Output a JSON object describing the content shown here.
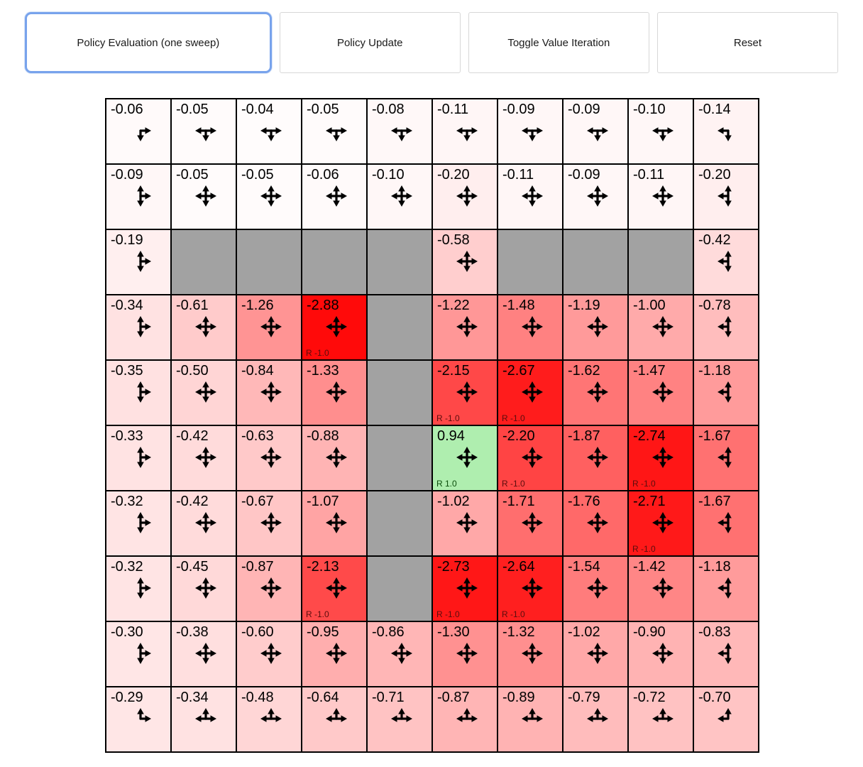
{
  "toolbar": {
    "buttons": [
      {
        "label": "Policy Evaluation (one sweep)",
        "active": true
      },
      {
        "label": "Policy Update",
        "active": false
      },
      {
        "label": "Toggle Value Iteration",
        "active": false
      },
      {
        "label": "Reset",
        "active": false
      }
    ]
  },
  "colors": {
    "active_button_border": "#78a3ec",
    "button_border": "#d7d7d7",
    "wall": "#a2a2a2",
    "grid_line": "#000000",
    "negative_full": "#ff0000",
    "positive_tint": "#afeeaf",
    "reward_negative_label": "#5a0d0d",
    "reward_positive_label": "#0b4d0b"
  },
  "icons": {
    "policy_arrows": "black arrows from cell center; letters U,R,D,L = up,right,down,left"
  },
  "grid": {
    "rows": 10,
    "cols": 10,
    "cells": [
      {
        "value": "-0.06",
        "arrows": "RD"
      },
      {
        "value": "-0.05",
        "arrows": "LDR"
      },
      {
        "value": "-0.04",
        "arrows": "LDR"
      },
      {
        "value": "-0.05",
        "arrows": "LDR"
      },
      {
        "value": "-0.08",
        "arrows": "LDR"
      },
      {
        "value": "-0.11",
        "arrows": "LDR"
      },
      {
        "value": "-0.09",
        "arrows": "LDR"
      },
      {
        "value": "-0.09",
        "arrows": "LDR"
      },
      {
        "value": "-0.10",
        "arrows": "LDR"
      },
      {
        "value": "-0.14",
        "arrows": "LD"
      },
      {
        "value": "-0.09",
        "arrows": "URD"
      },
      {
        "value": "-0.05",
        "arrows": "URDL"
      },
      {
        "value": "-0.05",
        "arrows": "URDL"
      },
      {
        "value": "-0.06",
        "arrows": "URDL"
      },
      {
        "value": "-0.10",
        "arrows": "URDL"
      },
      {
        "value": "-0.20",
        "arrows": "URDL"
      },
      {
        "value": "-0.11",
        "arrows": "URDL"
      },
      {
        "value": "-0.09",
        "arrows": "URDL"
      },
      {
        "value": "-0.11",
        "arrows": "URDL"
      },
      {
        "value": "-0.20",
        "arrows": "ULD"
      },
      {
        "value": "-0.19",
        "arrows": "URD"
      },
      {
        "wall": true
      },
      {
        "wall": true
      },
      {
        "wall": true
      },
      {
        "wall": true
      },
      {
        "value": "-0.58",
        "arrows": "URDL"
      },
      {
        "wall": true
      },
      {
        "wall": true
      },
      {
        "wall": true
      },
      {
        "value": "-0.42",
        "arrows": "ULD"
      },
      {
        "value": "-0.34",
        "arrows": "URD"
      },
      {
        "value": "-0.61",
        "arrows": "URDL"
      },
      {
        "value": "-1.26",
        "arrows": "URDL"
      },
      {
        "value": "-2.88",
        "arrows": "URDL",
        "reward": "R -1.0"
      },
      {
        "wall": true
      },
      {
        "value": "-1.22",
        "arrows": "URDL"
      },
      {
        "value": "-1.48",
        "arrows": "URDL"
      },
      {
        "value": "-1.19",
        "arrows": "URDL"
      },
      {
        "value": "-1.00",
        "arrows": "URDL"
      },
      {
        "value": "-0.78",
        "arrows": "ULD"
      },
      {
        "value": "-0.35",
        "arrows": "URD"
      },
      {
        "value": "-0.50",
        "arrows": "URDL"
      },
      {
        "value": "-0.84",
        "arrows": "URDL"
      },
      {
        "value": "-1.33",
        "arrows": "URDL"
      },
      {
        "wall": true
      },
      {
        "value": "-2.15",
        "arrows": "URDL",
        "reward": "R -1.0"
      },
      {
        "value": "-2.67",
        "arrows": "URDL",
        "reward": "R -1.0"
      },
      {
        "value": "-1.62",
        "arrows": "URDL"
      },
      {
        "value": "-1.47",
        "arrows": "URDL"
      },
      {
        "value": "-1.18",
        "arrows": "ULD"
      },
      {
        "value": "-0.33",
        "arrows": "URD"
      },
      {
        "value": "-0.42",
        "arrows": "URDL"
      },
      {
        "value": "-0.63",
        "arrows": "URDL"
      },
      {
        "value": "-0.88",
        "arrows": "URDL"
      },
      {
        "wall": true
      },
      {
        "value": "0.94",
        "arrows": "URDL",
        "reward": "R 1.0"
      },
      {
        "value": "-2.20",
        "arrows": "URDL",
        "reward": "R -1.0"
      },
      {
        "value": "-1.87",
        "arrows": "URDL"
      },
      {
        "value": "-2.74",
        "arrows": "URDL",
        "reward": "R -1.0"
      },
      {
        "value": "-1.67",
        "arrows": "ULD"
      },
      {
        "value": "-0.32",
        "arrows": "URD"
      },
      {
        "value": "-0.42",
        "arrows": "URDL"
      },
      {
        "value": "-0.67",
        "arrows": "URDL"
      },
      {
        "value": "-1.07",
        "arrows": "URDL"
      },
      {
        "wall": true
      },
      {
        "value": "-1.02",
        "arrows": "URDL"
      },
      {
        "value": "-1.71",
        "arrows": "URDL"
      },
      {
        "value": "-1.76",
        "arrows": "URDL"
      },
      {
        "value": "-2.71",
        "arrows": "URDL",
        "reward": "R -1.0"
      },
      {
        "value": "-1.67",
        "arrows": "ULD"
      },
      {
        "value": "-0.32",
        "arrows": "URD"
      },
      {
        "value": "-0.45",
        "arrows": "URDL"
      },
      {
        "value": "-0.87",
        "arrows": "URDL"
      },
      {
        "value": "-2.13",
        "arrows": "URDL",
        "reward": "R -1.0"
      },
      {
        "wall": true
      },
      {
        "value": "-2.73",
        "arrows": "URDL",
        "reward": "R -1.0"
      },
      {
        "value": "-2.64",
        "arrows": "URDL",
        "reward": "R -1.0"
      },
      {
        "value": "-1.54",
        "arrows": "URDL"
      },
      {
        "value": "-1.42",
        "arrows": "URDL"
      },
      {
        "value": "-1.18",
        "arrows": "ULD"
      },
      {
        "value": "-0.30",
        "arrows": "URD"
      },
      {
        "value": "-0.38",
        "arrows": "URDL"
      },
      {
        "value": "-0.60",
        "arrows": "URDL"
      },
      {
        "value": "-0.95",
        "arrows": "URDL"
      },
      {
        "value": "-0.86",
        "arrows": "URDL"
      },
      {
        "value": "-1.30",
        "arrows": "URDL"
      },
      {
        "value": "-1.32",
        "arrows": "URDL"
      },
      {
        "value": "-1.02",
        "arrows": "URDL"
      },
      {
        "value": "-0.90",
        "arrows": "URDL"
      },
      {
        "value": "-0.83",
        "arrows": "ULD"
      },
      {
        "value": "-0.29",
        "arrows": "UR"
      },
      {
        "value": "-0.34",
        "arrows": "LUR"
      },
      {
        "value": "-0.48",
        "arrows": "LUR"
      },
      {
        "value": "-0.64",
        "arrows": "LUR"
      },
      {
        "value": "-0.71",
        "arrows": "LUR"
      },
      {
        "value": "-0.87",
        "arrows": "LUR"
      },
      {
        "value": "-0.89",
        "arrows": "LUR"
      },
      {
        "value": "-0.79",
        "arrows": "LUR"
      },
      {
        "value": "-0.72",
        "arrows": "LUR"
      },
      {
        "value": "-0.70",
        "arrows": "UL"
      }
    ]
  }
}
